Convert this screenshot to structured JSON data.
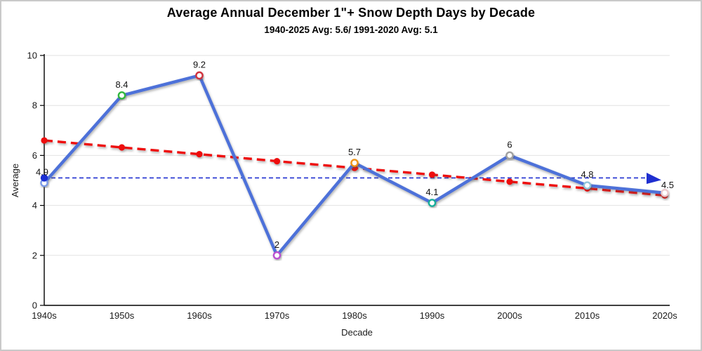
{
  "header": {
    "title": "Average Annual December 1\"+ Snow Depth Days by Decade",
    "subtitle": "1940-2025 Avg: 5.6/ 1991-2020 Avg: 5.1"
  },
  "chart_data": {
    "type": "line",
    "title": "Average Annual December 1\"+ Snow Depth Days by Decade",
    "subtitle": "1940-2025 Avg: 5.6/ 1991-2020 Avg: 5.1",
    "xlabel": "Decade",
    "ylabel": "Average",
    "ylim": [
      0,
      10
    ],
    "yticks": [
      0,
      2,
      4,
      6,
      8,
      10
    ],
    "grid": "horizontal",
    "legend": "none",
    "categories": [
      "1940s",
      "1950s",
      "1960s",
      "1970s",
      "1980s",
      "1990s",
      "2000s",
      "2010s",
      "2020s"
    ],
    "series": [
      {
        "name": "december-snow-depth-days-average",
        "values": [
          4.9,
          8.4,
          9.2,
          2,
          5.7,
          4.1,
          6,
          4.8,
          4.5
        ],
        "labels": [
          "4.9",
          "8.4",
          "9.2",
          "2",
          "5.7",
          "4.1",
          "6",
          "4.8",
          "4.5"
        ],
        "line_color": "#4d71d9",
        "line_style": "solid",
        "marker_style": "open-circle",
        "marker_colors": [
          "#7b9be8",
          "#2db83d",
          "#d0303c",
          "#bb4fd0",
          "#ef9413",
          "#19ae9a",
          "#a0a0a0",
          "#8fc4d9",
          "#e9c9cd"
        ]
      },
      {
        "name": "linear-trend",
        "values": [
          6.6,
          6.32,
          6.05,
          5.77,
          5.5,
          5.23,
          4.95,
          4.68,
          4.4
        ],
        "labels": [],
        "line_color": "#ee1111",
        "line_style": "dashed",
        "marker_style": "filled-circle",
        "marker_colors": [
          "#ee1111",
          "#ee1111",
          "#ee1111",
          "#ee1111",
          "#ee1111",
          "#ee1111",
          "#ee1111",
          "#ee1111",
          "#ee1111"
        ]
      }
    ],
    "reference_line": {
      "name": "1991-2020-average",
      "value": 5.1,
      "color": "#1f2fd0",
      "style": "dashed",
      "start_marker": "filled-blue-dot",
      "end_marker": "right-arrow"
    },
    "axis_color": "#000000",
    "gridline_color": "#e2e2e2",
    "label_color": "#1a1a1a"
  }
}
